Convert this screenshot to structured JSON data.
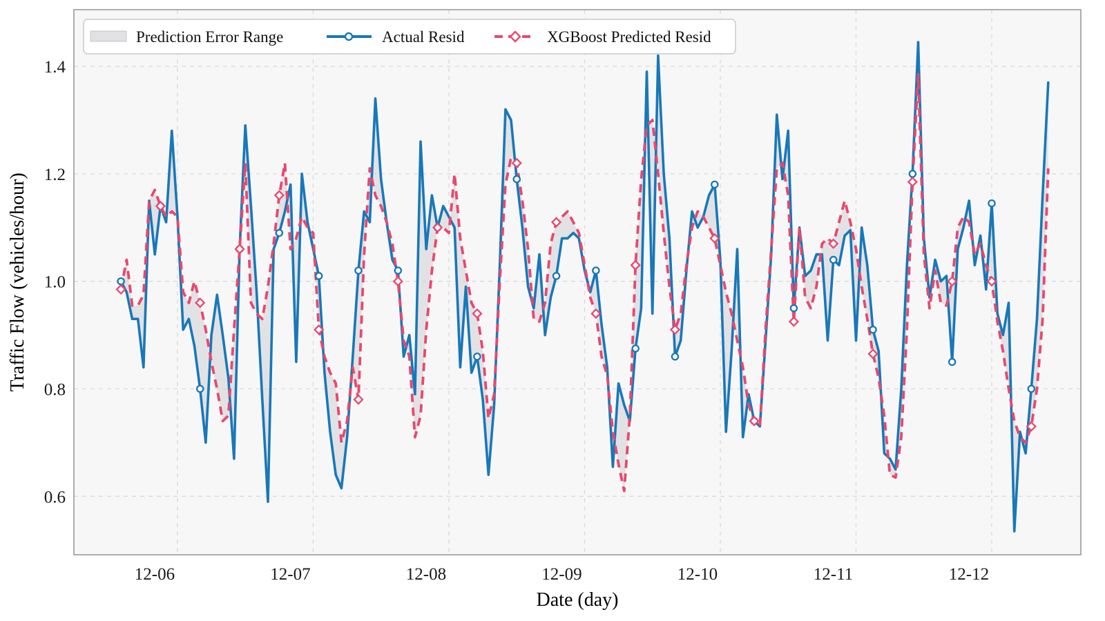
{
  "figure": {
    "bg_color": "#ffffff",
    "plot_bg_color": "#f7f7f8",
    "grid_color": "#d9d9dc",
    "spine_color": "#8c8c8c"
  },
  "chart_data": {
    "type": "line",
    "title": "",
    "xlabel": "Date (day)",
    "ylabel": "Traffic Flow (vehicles/hour)",
    "x_start": "12-05 14:00",
    "x_interval_hours": 1,
    "x_tick_labels": [
      "12-06",
      "12-07",
      "12-08",
      "12-09",
      "12-10",
      "12-11",
      "12-12"
    ],
    "x_tick_hour_index": [
      10,
      34,
      58,
      82,
      106,
      130,
      154
    ],
    "y_ticks": [
      0.6,
      0.8,
      1.0,
      1.2,
      1.4
    ],
    "ylim": [
      0.49,
      1.5
    ],
    "grid": true,
    "legend_position": "top-left-horizontal",
    "band_label": "Prediction Error Range",
    "band_color": "#d2d2d5",
    "marker_every": 7,
    "series": [
      {
        "name": "Actual Resid",
        "color": "#1878b8",
        "line_style": "solid",
        "marker": "circle",
        "values": [
          1.0,
          0.98,
          0.93,
          0.93,
          0.84,
          1.15,
          1.05,
          1.14,
          1.11,
          1.28,
          1.12,
          0.91,
          0.93,
          0.88,
          0.8,
          0.7,
          0.9,
          0.975,
          0.9,
          0.82,
          0.67,
          1.06,
          1.29,
          1.14,
          0.98,
          0.78,
          0.59,
          1.06,
          1.09,
          1.13,
          1.18,
          0.85,
          1.2,
          1.11,
          1.06,
          1.01,
          0.83,
          0.72,
          0.64,
          0.615,
          0.71,
          0.86,
          1.02,
          1.13,
          1.11,
          1.34,
          1.19,
          1.11,
          1.04,
          1.02,
          0.86,
          0.9,
          0.79,
          1.26,
          1.06,
          1.16,
          1.1,
          1.14,
          1.12,
          1.1,
          0.84,
          0.99,
          0.83,
          0.86,
          0.78,
          0.64,
          0.77,
          1.03,
          1.32,
          1.3,
          1.19,
          1.1,
          0.99,
          0.95,
          1.05,
          0.9,
          0.97,
          1.01,
          1.08,
          1.08,
          1.09,
          1.08,
          1.02,
          0.98,
          1.02,
          0.92,
          0.84,
          0.655,
          0.81,
          0.77,
          0.74,
          0.875,
          0.95,
          1.39,
          0.94,
          1.42,
          1.2,
          1.08,
          0.86,
          0.89,
          1.02,
          1.13,
          1.1,
          1.12,
          1.16,
          1.18,
          1.04,
          0.72,
          0.87,
          1.06,
          0.71,
          0.79,
          0.74,
          0.73,
          0.89,
          1.05,
          1.31,
          1.19,
          1.28,
          0.95,
          1.1,
          1.01,
          1.02,
          1.05,
          1.05,
          0.89,
          1.04,
          1.03,
          1.085,
          1.095,
          0.89,
          1.1,
          1.03,
          0.91,
          0.87,
          0.68,
          0.67,
          0.65,
          0.8,
          1.03,
          1.2,
          1.445,
          1.08,
          0.97,
          1.04,
          1.0,
          1.01,
          0.85,
          1.06,
          1.1,
          1.15,
          1.03,
          1.085,
          0.985,
          1.145,
          0.94,
          0.9,
          0.96,
          0.535,
          0.72,
          0.68,
          0.8,
          0.93,
          1.16,
          1.37
        ]
      },
      {
        "name": "XGBoost Predicted Resid",
        "color": "#e8486e",
        "line_style": "dashed",
        "marker": "diamond",
        "values": [
          0.985,
          1.04,
          0.955,
          0.955,
          0.975,
          1.15,
          1.17,
          1.14,
          1.12,
          1.13,
          1.12,
          0.98,
          0.96,
          1.0,
          0.96,
          0.91,
          0.85,
          0.8,
          0.74,
          0.75,
          0.91,
          1.06,
          1.22,
          0.96,
          0.94,
          0.93,
          0.99,
          1.07,
          1.16,
          1.22,
          1.06,
          1.08,
          1.12,
          1.1,
          1.09,
          0.91,
          0.86,
          0.83,
          0.81,
          0.7,
          0.74,
          0.84,
          0.78,
          1.05,
          1.21,
          1.16,
          1.14,
          1.11,
          1.07,
          1.0,
          0.89,
          0.86,
          0.71,
          0.75,
          0.91,
          1.02,
          1.1,
          1.1,
          1.09,
          1.2,
          1.08,
          1.02,
          0.96,
          0.94,
          0.87,
          0.745,
          0.79,
          1.0,
          1.18,
          1.23,
          1.22,
          1.15,
          1.06,
          0.93,
          0.925,
          0.96,
          1.07,
          1.11,
          1.12,
          1.13,
          1.11,
          1.09,
          1.03,
          0.97,
          0.94,
          0.86,
          0.825,
          0.72,
          0.66,
          0.61,
          0.75,
          1.03,
          1.19,
          1.29,
          1.3,
          1.2,
          1.09,
          0.99,
          0.91,
          0.94,
          1.03,
          1.1,
          1.13,
          1.12,
          1.1,
          1.08,
          1.03,
          0.98,
          0.94,
          0.89,
          0.84,
          0.77,
          0.74,
          0.73,
          0.91,
          1.06,
          1.21,
          1.22,
          1.16,
          0.925,
          1.1,
          0.97,
          0.95,
          0.99,
          1.07,
          1.08,
          1.07,
          1.11,
          1.15,
          1.11,
          1.06,
          0.99,
          0.93,
          0.865,
          0.82,
          0.75,
          0.64,
          0.635,
          0.71,
          0.91,
          1.185,
          1.385,
          1.05,
          0.95,
          1.02,
          0.96,
          0.955,
          1.0,
          1.1,
          1.12,
          1.11,
          1.05,
          1.07,
          1.03,
          1.0,
          0.925,
          0.87,
          0.8,
          0.74,
          0.71,
          0.7,
          0.73,
          0.8,
          0.93,
          1.21
        ]
      }
    ]
  },
  "legend": {
    "band_label": "Prediction Error Range",
    "actual_label": "Actual Resid",
    "predicted_label": "XGBoost Predicted Resid"
  }
}
